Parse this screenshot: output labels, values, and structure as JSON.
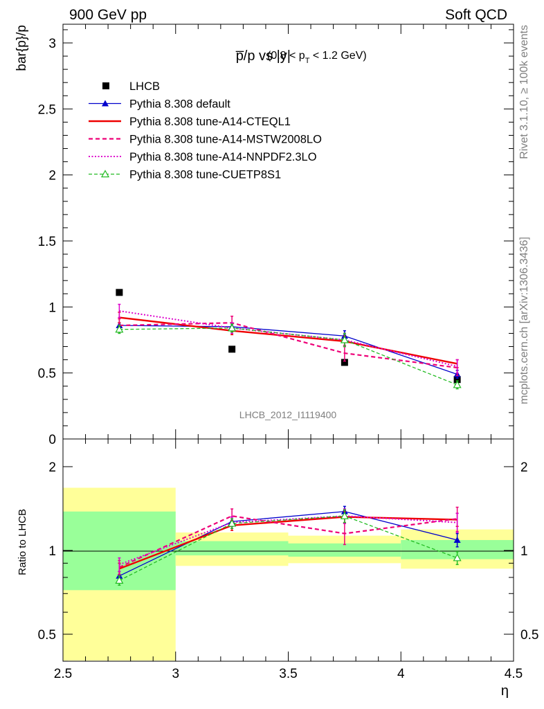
{
  "header": {
    "left": "900 GeV pp",
    "right": "Soft QCD"
  },
  "side": {
    "rivet": "Rivet 3.1.10, ≥ 100k events",
    "mcplots": "mcplots.cern.ch [arXiv:1306.3436]"
  },
  "colors": {
    "data": "#000000",
    "default": "#0000cc",
    "cteql1": "#ee0000",
    "mstw": "#ee0077",
    "nnpdf": "#dd00cc",
    "cuetp8s1": "#22bb22",
    "band_inner": "#99ff99",
    "band_outer": "#ffff99"
  },
  "chart_data": [
    {
      "type": "line",
      "title_main": "p̅/p vs |y|",
      "title_range_a": "(0.8 < p",
      "title_sub": "T",
      "title_range_b": " < 1.2 GeV)",
      "ylabel": "bar{p}/p",
      "watermark": "LHCB_2012_I1119400",
      "xlim": [
        2.5,
        4.5
      ],
      "ylim": [
        0,
        3.15
      ],
      "yticks": [
        "0.5",
        "1",
        "1.5",
        "2",
        "2.5",
        "3"
      ],
      "legend_position": "top-left",
      "x": [
        2.75,
        3.25,
        3.75,
        4.25
      ],
      "series": [
        {
          "name": "LHCB",
          "key": "data",
          "values": [
            1.11,
            0.68,
            0.58,
            0.45
          ]
        },
        {
          "name": "Pythia 8.308 default",
          "key": "default",
          "values": [
            0.86,
            0.85,
            0.78,
            0.49
          ],
          "err": [
            0.02,
            0.03,
            0.04,
            0.03
          ]
        },
        {
          "name": "Pythia 8.308 tune-A14-CTEQL1",
          "key": "cteql1",
          "values": [
            0.92,
            0.82,
            0.74,
            0.57
          ],
          "err": [
            0.04,
            0.03,
            0.04,
            0.03
          ]
        },
        {
          "name": "Pythia 8.308 tune-A14-MSTW2008LO",
          "key": "mstw",
          "values": [
            0.86,
            0.88,
            0.65,
            0.54
          ],
          "err": [
            0.05,
            0.05,
            0.06,
            0.06
          ]
        },
        {
          "name": "Pythia 8.308 tune-A14-NNPDF2.3LO",
          "key": "nnpdf",
          "values": [
            0.97,
            0.84,
            0.75,
            0.55
          ],
          "err": [
            0.05,
            0.04,
            0.05,
            0.05
          ]
        },
        {
          "name": "Pythia 8.308 tune-CUETP8S1",
          "key": "cuetp8s1",
          "values": [
            0.83,
            0.84,
            0.75,
            0.41
          ],
          "err": [
            0.03,
            0.03,
            0.05,
            0.03
          ]
        }
      ]
    },
    {
      "type": "line",
      "ylabel": "Ratio to LHCB",
      "xlabel": "η",
      "xlim": [
        2.5,
        4.5
      ],
      "ylim": [
        0.4,
        2.3
      ],
      "xticks": [
        "2.5",
        "3",
        "3.5",
        "4",
        "4.5"
      ],
      "yticks": [
        "0.5",
        "1",
        "2"
      ],
      "x": [
        2.75,
        3.25,
        3.75,
        4.25
      ],
      "bins": [
        [
          2.5,
          3.0
        ],
        [
          3.0,
          3.5
        ],
        [
          3.5,
          4.0
        ],
        [
          4.0,
          4.5
        ]
      ],
      "band_inner": [
        [
          0.72,
          1.38
        ],
        [
          0.96,
          1.08
        ],
        [
          0.95,
          1.06
        ],
        [
          0.93,
          1.09
        ]
      ],
      "band_outer": [
        [
          0.4,
          1.68
        ],
        [
          0.88,
          1.16
        ],
        [
          0.9,
          1.13
        ],
        [
          0.86,
          1.19
        ]
      ],
      "series": [
        {
          "name": "Pythia 8.308 default",
          "key": "default",
          "values": [
            0.81,
            1.27,
            1.38,
            1.09
          ],
          "err": [
            0.03,
            0.05,
            0.06,
            0.06
          ]
        },
        {
          "name": "Pythia 8.308 tune-A14-CTEQL1",
          "key": "cteql1",
          "values": [
            0.86,
            1.23,
            1.32,
            1.29
          ],
          "err": [
            0.04,
            0.05,
            0.06,
            0.07
          ]
        },
        {
          "name": "Pythia 8.308 tune-A14-MSTW2008LO",
          "key": "mstw",
          "values": [
            0.87,
            1.33,
            1.15,
            1.3
          ],
          "err": [
            0.05,
            0.08,
            0.1,
            0.13
          ]
        },
        {
          "name": "Pythia 8.308 tune-A14-NNPDF2.3LO",
          "key": "nnpdf",
          "values": [
            0.89,
            1.26,
            1.33,
            1.26
          ],
          "err": [
            0.05,
            0.06,
            0.08,
            0.1
          ]
        },
        {
          "name": "Pythia 8.308 tune-CUETP8S1",
          "key": "cuetp8s1",
          "values": [
            0.78,
            1.25,
            1.33,
            0.94
          ],
          "err": [
            0.03,
            0.05,
            0.07,
            0.05
          ]
        }
      ]
    }
  ]
}
